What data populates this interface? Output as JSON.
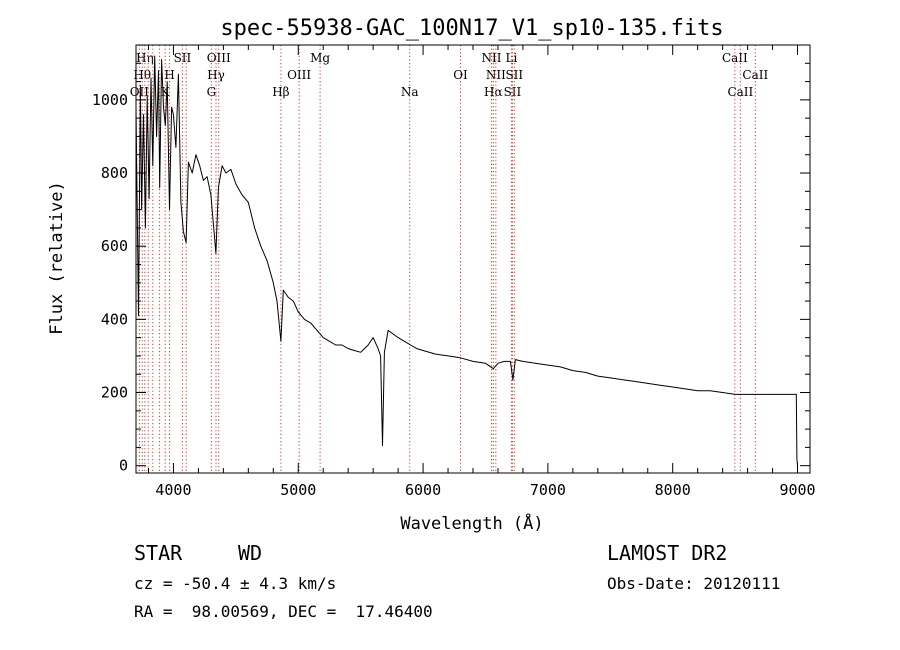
{
  "chart_data": {
    "type": "line",
    "title": "spec-55938-GAC_100N17_V1_sp10-135.fits",
    "xlabel": "Wavelength (Å)",
    "ylabel": "Flux (relative)",
    "xlim": [
      3700,
      9100
    ],
    "ylim": [
      -20,
      1150
    ],
    "x_ticks": [
      4000,
      5000,
      6000,
      7000,
      8000,
      9000
    ],
    "y_ticks": [
      0,
      200,
      400,
      600,
      800,
      1000
    ],
    "grid": false,
    "series": [
      {
        "x": [
          3700,
          3720,
          3735,
          3745,
          3760,
          3775,
          3790,
          3805,
          3820,
          3835,
          3850,
          3865,
          3880,
          3890,
          3905,
          3920,
          3935,
          3950,
          3968,
          3985,
          4000,
          4020,
          4040,
          4060,
          4080,
          4101,
          4120,
          4150,
          4180,
          4210,
          4240,
          4270,
          4300,
          4320,
          4340,
          4360,
          4390,
          4420,
          4460,
          4500,
          4550,
          4600,
          4650,
          4700,
          4750,
          4800,
          4830,
          4861,
          4880,
          4920,
          4960,
          5000,
          5050,
          5100,
          5150,
          5200,
          5250,
          5300,
          5350,
          5400,
          5450,
          5500,
          5530,
          5560,
          5600,
          5640,
          5660,
          5675,
          5690,
          5705,
          5720,
          5760,
          5800,
          5850,
          5900,
          5950,
          6000,
          6100,
          6200,
          6300,
          6400,
          6500,
          6563,
          6600,
          6650,
          6700,
          6720,
          6740,
          6800,
          6900,
          7000,
          7100,
          7200,
          7300,
          7400,
          7500,
          7600,
          7700,
          7800,
          7900,
          8000,
          8100,
          8200,
          8300,
          8400,
          8500,
          8600,
          8700,
          8800,
          8900,
          8990,
          8995,
          9000
        ],
        "y": [
          980,
          410,
          1040,
          700,
          960,
          650,
          1010,
          730,
          1060,
          820,
          1120,
          900,
          1080,
          760,
          1110,
          980,
          930,
          1050,
          700,
          980,
          960,
          870,
          1070,
          720,
          640,
          610,
          830,
          800,
          850,
          820,
          780,
          790,
          740,
          660,
          580,
          760,
          820,
          800,
          810,
          770,
          740,
          720,
          650,
          600,
          560,
          500,
          450,
          340,
          480,
          460,
          450,
          420,
          400,
          390,
          370,
          350,
          340,
          330,
          330,
          320,
          315,
          310,
          320,
          330,
          350,
          320,
          300,
          55,
          310,
          340,
          370,
          360,
          350,
          340,
          330,
          320,
          315,
          305,
          300,
          295,
          285,
          280,
          265,
          280,
          285,
          285,
          235,
          290,
          285,
          280,
          275,
          270,
          260,
          255,
          245,
          240,
          235,
          230,
          225,
          220,
          215,
          210,
          205,
          205,
          200,
          195,
          195,
          195,
          195,
          195,
          195,
          20,
          0
        ]
      }
    ],
    "line_markers": [
      {
        "x": 3727,
        "label": "OII",
        "row": 3
      },
      {
        "x": 3750,
        "label": "Hθ",
        "row": 2
      },
      {
        "x": 3771,
        "label": "Hη",
        "row": 1
      },
      {
        "x": 3798,
        "label": "",
        "row": 0
      },
      {
        "x": 3835,
        "label": "",
        "row": 0
      },
      {
        "x": 3889,
        "label": "",
        "row": 0
      },
      {
        "x": 3934,
        "label": "K",
        "row": 3
      },
      {
        "x": 3969,
        "label": "H",
        "row": 2
      },
      {
        "x": 4072,
        "label": "SII",
        "row": 1
      },
      {
        "x": 4102,
        "label": "",
        "row": 0
      },
      {
        "x": 4304,
        "label": "G",
        "row": 3
      },
      {
        "x": 4341,
        "label": "Hγ",
        "row": 2
      },
      {
        "x": 4363,
        "label": "OIII",
        "row": 1
      },
      {
        "x": 4861,
        "label": "Hβ",
        "row": 3
      },
      {
        "x": 5007,
        "label": "OIII",
        "row": 2
      },
      {
        "x": 5175,
        "label": "Mg",
        "row": 1
      },
      {
        "x": 5893,
        "label": "Na",
        "row": 3
      },
      {
        "x": 6300,
        "label": "OI",
        "row": 2
      },
      {
        "x": 6548,
        "label": "NII",
        "row": 1
      },
      {
        "x": 6563,
        "label": "Hα",
        "row": 3
      },
      {
        "x": 6583,
        "label": "NII",
        "row": 2
      },
      {
        "x": 6708,
        "label": "Li",
        "row": 1
      },
      {
        "x": 6716,
        "label": "SII",
        "row": 3
      },
      {
        "x": 6731,
        "label": "SII",
        "row": 2
      },
      {
        "x": 8498,
        "label": "CaII",
        "row": 1
      },
      {
        "x": 8542,
        "label": "CaII",
        "row": 3
      },
      {
        "x": 8662,
        "label": "CaII",
        "row": 2
      }
    ]
  },
  "info": {
    "class_label": "STAR",
    "subclass_label": "WD",
    "velocity": "cz = -50.4 ± 4.3 km/s",
    "coords": "RA =  98.00569, DEC =  17.46400",
    "survey": "LAMOST DR2",
    "obs_date": "Obs-Date: 20120111"
  }
}
